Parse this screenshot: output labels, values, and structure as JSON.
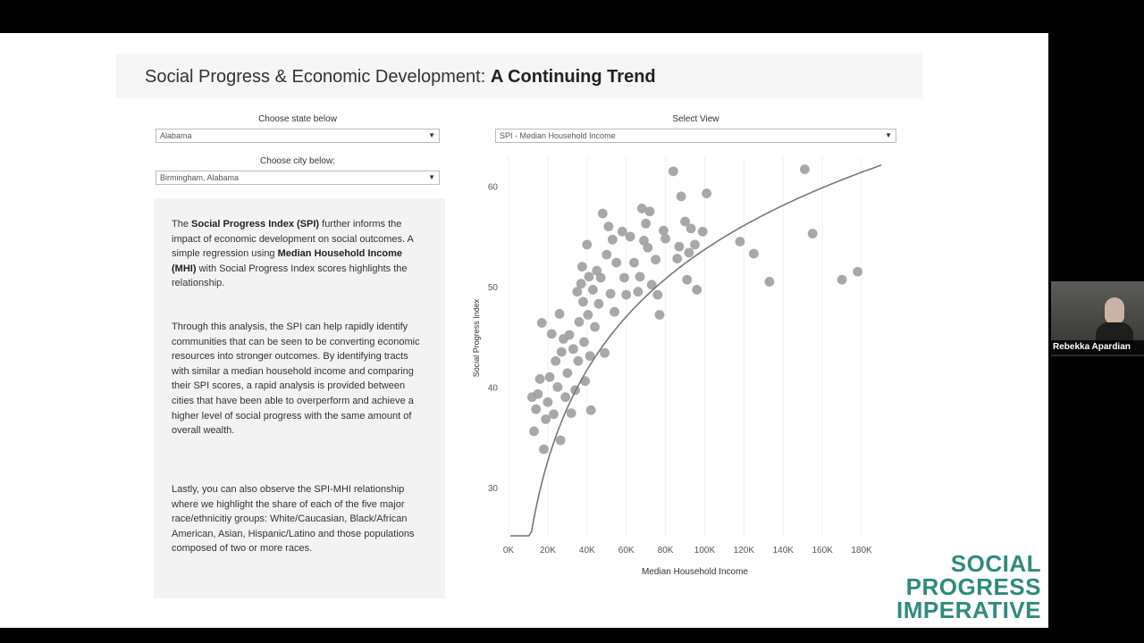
{
  "page": {
    "title_prefix": "Social Progress & Economic Development:",
    "title_emphasis": "A Continuing Trend"
  },
  "controls": {
    "state_label": "Choose state below",
    "state_value": "Alabama",
    "city_label": "Choose city below:",
    "city_value": "Birmingham, Alabama",
    "view_label": "Select View",
    "view_value": "SPI - Median Household Income"
  },
  "text": {
    "p1_a": "The ",
    "p1_bold1": "Social Progress Index (SPI)",
    "p1_b": " further informs the impact of economic development on social outcomes. A simple regression using ",
    "p1_bold2": "Median Household Income (MHI)",
    "p1_c": " with Social Progress Index scores highlights the relationship.",
    "p2": "Through this analysis, the SPI can help rapidly identify communities that can be seen to be converting economic resources into stronger outcomes. By identifying tracts with similar a median household income and comparing their SPI scores, a rapid analysis is provided between cities that have been able to overperform and achieve a higher level of social progress with the same amount of overall wealth.",
    "p3": "Lastly, you can also observe the SPI-MHI relationship where we highlight the share of each of the five major race/ethnicitiy groups: White/Caucasian, Black/African American, Asian, Hispanic/Latino and those populations composed of two or more races."
  },
  "logo": {
    "line1": "SOCIAL",
    "line2": "PROGRESS",
    "line3": "IMPERATIVE",
    "color": "#2e8b7d"
  },
  "participant": {
    "name": "Rebekka Apardian"
  },
  "chart_data": {
    "type": "scatter",
    "xlabel": "Median Household Income",
    "ylabel": "Social Progress Index",
    "xlim": [
      0,
      190000
    ],
    "ylim": [
      25,
      63
    ],
    "x_ticks": [
      0,
      20000,
      40000,
      60000,
      80000,
      100000,
      120000,
      140000,
      160000,
      180000
    ],
    "x_tick_labels": [
      "0K",
      "20K",
      "40K",
      "60K",
      "80K",
      "100K",
      "120K",
      "140K",
      "160K",
      "180K"
    ],
    "y_ticks": [
      30,
      40,
      50,
      60
    ],
    "y_tick_labels": [
      "30",
      "40",
      "50",
      "60"
    ],
    "point_color": "#9e9e9e",
    "trend_color": "#777777",
    "trendline": "logarithmic",
    "points": [
      [
        12000,
        39.0
      ],
      [
        13000,
        35.6
      ],
      [
        14000,
        37.8
      ],
      [
        15000,
        39.3
      ],
      [
        16000,
        40.8
      ],
      [
        17000,
        46.4
      ],
      [
        18000,
        33.8
      ],
      [
        19000,
        36.8
      ],
      [
        20000,
        38.5
      ],
      [
        21000,
        41.0
      ],
      [
        22000,
        45.3
      ],
      [
        23000,
        37.3
      ],
      [
        24000,
        42.6
      ],
      [
        25000,
        40.0
      ],
      [
        26000,
        47.3
      ],
      [
        26500,
        34.7
      ],
      [
        27000,
        43.5
      ],
      [
        28000,
        44.8
      ],
      [
        29000,
        39.0
      ],
      [
        30000,
        41.4
      ],
      [
        31000,
        45.2
      ],
      [
        32000,
        37.4
      ],
      [
        33000,
        43.8
      ],
      [
        34000,
        39.7
      ],
      [
        35000,
        49.5
      ],
      [
        35500,
        42.6
      ],
      [
        36000,
        46.5
      ],
      [
        37000,
        50.3
      ],
      [
        37500,
        52.0
      ],
      [
        38000,
        48.5
      ],
      [
        38500,
        44.5
      ],
      [
        39000,
        40.6
      ],
      [
        40000,
        54.2
      ],
      [
        40500,
        47.2
      ],
      [
        41000,
        51.0
      ],
      [
        41500,
        43.1
      ],
      [
        42000,
        37.7
      ],
      [
        43000,
        49.7
      ],
      [
        44000,
        46.0
      ],
      [
        45000,
        51.6
      ],
      [
        46000,
        48.3
      ],
      [
        47000,
        50.9
      ],
      [
        48000,
        57.3
      ],
      [
        49000,
        43.4
      ],
      [
        50000,
        53.2
      ],
      [
        51000,
        56.0
      ],
      [
        52000,
        49.3
      ],
      [
        53000,
        54.7
      ],
      [
        54000,
        47.5
      ],
      [
        55000,
        52.4
      ],
      [
        58000,
        55.5
      ],
      [
        59000,
        50.9
      ],
      [
        60000,
        49.2
      ],
      [
        62000,
        55.0
      ],
      [
        64000,
        52.4
      ],
      [
        66000,
        49.5
      ],
      [
        67000,
        51.0
      ],
      [
        68000,
        57.8
      ],
      [
        69000,
        54.6
      ],
      [
        70000,
        56.3
      ],
      [
        71000,
        53.9
      ],
      [
        72000,
        57.5
      ],
      [
        73000,
        50.2
      ],
      [
        75000,
        52.7
      ],
      [
        76000,
        49.2
      ],
      [
        77000,
        47.2
      ],
      [
        79000,
        55.6
      ],
      [
        80000,
        54.8
      ],
      [
        84000,
        61.5
      ],
      [
        86000,
        52.8
      ],
      [
        87000,
        54.0
      ],
      [
        88000,
        59.0
      ],
      [
        90000,
        56.5
      ],
      [
        91000,
        50.7
      ],
      [
        92000,
        53.4
      ],
      [
        93000,
        55.8
      ],
      [
        95000,
        54.2
      ],
      [
        96000,
        49.7
      ],
      [
        99000,
        55.5
      ],
      [
        101000,
        59.3
      ],
      [
        118000,
        54.5
      ],
      [
        125000,
        53.3
      ],
      [
        133000,
        50.5
      ],
      [
        151000,
        61.7
      ],
      [
        155000,
        55.3
      ],
      [
        170000,
        50.7
      ],
      [
        178000,
        51.5
      ]
    ]
  }
}
